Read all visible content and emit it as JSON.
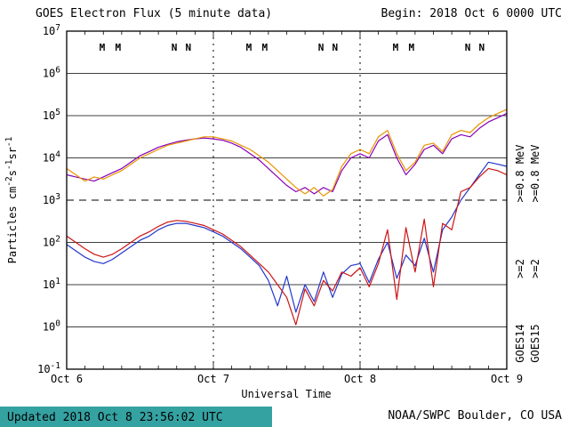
{
  "header": {
    "title": "GOES Electron Flux (5 minute data)",
    "begin_label": "Begin: 2018 Oct 6 0000 UTC",
    "begin_color": "#cc0000"
  },
  "footer": {
    "updated_label": "Updated 2018 Oct 8 23:56:02 UTC",
    "credit_label": "NOAA/SWPC Boulder, CO USA",
    "bar_color": "#35a2a2"
  },
  "legend": {
    "satellites": [
      {
        "name": "GOES14",
        "e08_label": ">=0.8 MeV",
        "e08_color": "#8a00b8",
        "e2_label": ">=2",
        "e2_color": "#2236cc"
      },
      {
        "name": "GOES15",
        "e08_label": ">=0.8 MeV",
        "e08_color": "#e89400",
        "e2_label": ">=2",
        "e2_color": "#cc1414"
      }
    ]
  },
  "chart_data": {
    "type": "line",
    "title": "GOES Electron Flux (5 minute data)",
    "xlabel": "Universal Time",
    "ylabel": "Particles cm⁻²s⁻¹sr⁻¹",
    "ylabel_parts": [
      {
        "text": "Particles cm"
      },
      {
        "sup": "-2"
      },
      {
        "text": "s"
      },
      {
        "sup": "-1"
      },
      {
        "text": "sr"
      },
      {
        "sup": "-1"
      }
    ],
    "y_scale": "log",
    "y_range_exp": [
      -1,
      7
    ],
    "y_tick_exps": [
      "7",
      "6",
      "5",
      "4",
      "3",
      "2",
      "1",
      "0",
      "-1"
    ],
    "threshold_exp": 3,
    "x_range_hours": [
      0,
      72
    ],
    "x_start": "2018 Oct 6 0000 UTC",
    "x_ticks": [
      {
        "hour": 0,
        "label": "Oct 6"
      },
      {
        "hour": 24,
        "label": "Oct 7"
      },
      {
        "hour": 48,
        "label": "Oct 8"
      },
      {
        "hour": 72,
        "label": "Oct 9"
      }
    ],
    "markers": [
      {
        "text": "M",
        "color": "#cc0000",
        "hours": [
          5.8,
          8.4,
          29.8,
          32.4,
          53.8,
          56.4
        ]
      },
      {
        "text": "N",
        "color": "#2236cc",
        "hours": [
          17.6,
          19.9,
          41.6,
          43.9,
          65.6,
          67.9
        ]
      }
    ],
    "x_hours": [
      0,
      1.5,
      3,
      4.5,
      6,
      7.5,
      9,
      10.5,
      12,
      13.5,
      15,
      16.5,
      18,
      19.5,
      21,
      22.5,
      24,
      25.5,
      27,
      28.5,
      30,
      31.5,
      33,
      34.5,
      36,
      37.5,
      39,
      40.5,
      42,
      43.5,
      45,
      46.5,
      48,
      49.5,
      51,
      52.5,
      54,
      55.5,
      57,
      58.5,
      60,
      61.5,
      63,
      64.5,
      66,
      67.5,
      69,
      70.5,
      72
    ],
    "series": [
      {
        "id": "goes14-e08",
        "name": "GOES14 >=0.8 MeV",
        "color": "#8a00b8",
        "log10_flux": [
          3.6,
          3.55,
          3.5,
          3.45,
          3.55,
          3.65,
          3.75,
          3.9,
          4.05,
          4.15,
          4.25,
          4.32,
          4.38,
          4.42,
          4.45,
          4.47,
          4.45,
          4.42,
          4.35,
          4.25,
          4.1,
          3.95,
          3.75,
          3.55,
          3.35,
          3.2,
          3.3,
          3.15,
          3.3,
          3.2,
          3.7,
          4.0,
          4.1,
          4.0,
          4.4,
          4.55,
          4.0,
          3.6,
          3.85,
          4.2,
          4.3,
          4.1,
          4.45,
          4.55,
          4.5,
          4.7,
          4.85,
          4.95,
          5.05
        ]
      },
      {
        "id": "goes15-e08",
        "name": "GOES15 >=0.8 MeV",
        "color": "#e89400",
        "log10_flux": [
          3.75,
          3.6,
          3.45,
          3.55,
          3.5,
          3.6,
          3.7,
          3.85,
          4.0,
          4.1,
          4.2,
          4.3,
          4.35,
          4.4,
          4.45,
          4.5,
          4.5,
          4.45,
          4.4,
          4.3,
          4.2,
          4.05,
          3.9,
          3.7,
          3.5,
          3.3,
          3.15,
          3.3,
          3.1,
          3.25,
          3.8,
          4.1,
          4.2,
          4.1,
          4.5,
          4.65,
          4.1,
          3.7,
          3.9,
          4.3,
          4.35,
          4.15,
          4.55,
          4.65,
          4.6,
          4.8,
          4.95,
          5.05,
          5.15
        ]
      },
      {
        "id": "goes14-e2",
        "name": "GOES14 >=2 MeV",
        "color": "#2236cc",
        "log10_flux": [
          1.95,
          1.8,
          1.65,
          1.55,
          1.5,
          1.6,
          1.75,
          1.9,
          2.05,
          2.15,
          2.3,
          2.4,
          2.45,
          2.45,
          2.4,
          2.35,
          2.25,
          2.15,
          2.0,
          1.85,
          1.65,
          1.45,
          1.1,
          0.5,
          1.2,
          0.35,
          1.0,
          0.6,
          1.3,
          0.7,
          1.25,
          1.45,
          1.5,
          1.05,
          1.6,
          2.0,
          1.15,
          1.7,
          1.45,
          2.1,
          1.3,
          2.3,
          2.6,
          3.0,
          3.3,
          3.6,
          3.9,
          3.85,
          3.8
        ]
      },
      {
        "id": "goes15-e2",
        "name": "GOES15 >=2 MeV",
        "color": "#cc1414",
        "log10_flux": [
          2.15,
          2.0,
          1.85,
          1.72,
          1.65,
          1.72,
          1.85,
          2.0,
          2.15,
          2.25,
          2.38,
          2.48,
          2.52,
          2.5,
          2.45,
          2.4,
          2.3,
          2.2,
          2.05,
          1.9,
          1.7,
          1.5,
          1.3,
          1.0,
          0.7,
          0.05,
          0.9,
          0.5,
          1.1,
          0.85,
          1.3,
          1.2,
          1.4,
          0.95,
          1.5,
          2.3,
          0.65,
          2.35,
          1.3,
          2.55,
          0.95,
          2.45,
          2.3,
          3.2,
          3.3,
          3.55,
          3.75,
          3.7,
          3.6
        ]
      }
    ]
  }
}
